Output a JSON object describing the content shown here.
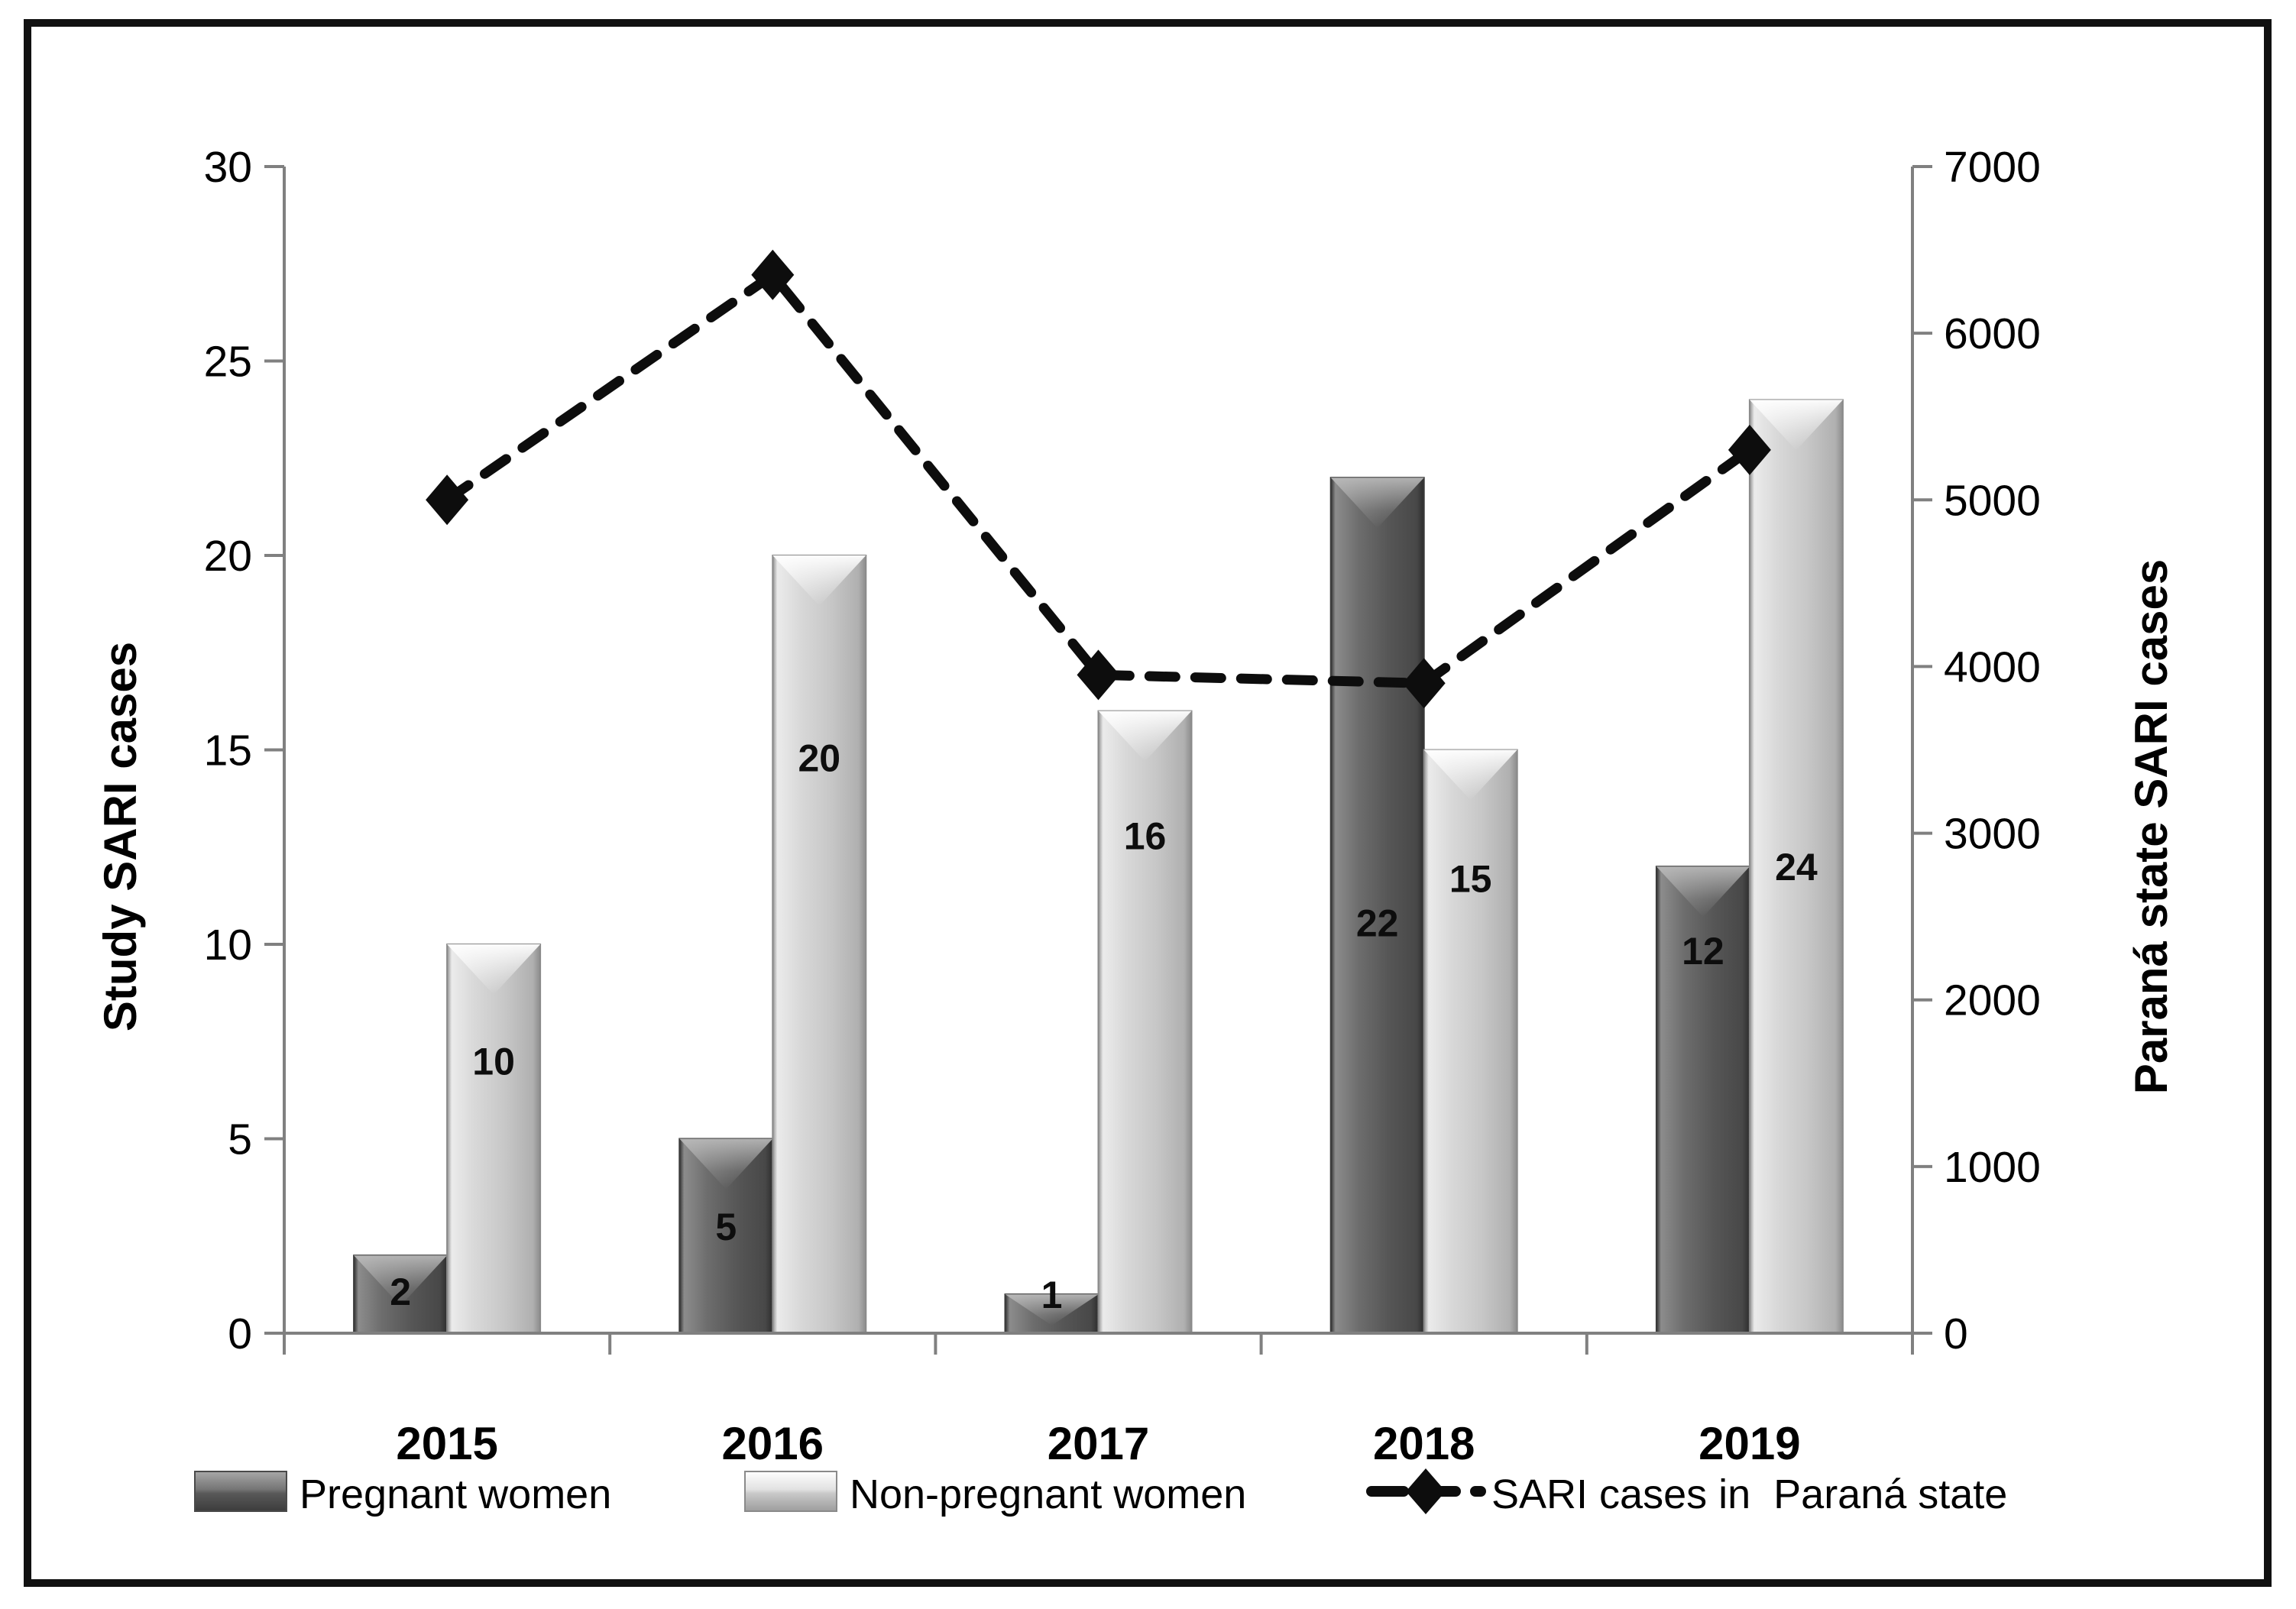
{
  "chart_data": {
    "type": "bar",
    "subtype": "grouped-bars-with-dashed-line-overlay",
    "categories": [
      "2015",
      "2016",
      "2017",
      "2018",
      "2019"
    ],
    "series": [
      {
        "name": "Pregnant women",
        "type": "bar",
        "axis": "left",
        "values": [
          2,
          5,
          1,
          22,
          12
        ]
      },
      {
        "name": "Non-pregnant women",
        "type": "bar",
        "axis": "left",
        "values": [
          10,
          20,
          16,
          15,
          24
        ]
      },
      {
        "name": "SARI cases in Paraná state",
        "type": "line",
        "axis": "right",
        "line_style": "dashed",
        "marker": "diamond",
        "values": [
          5000,
          6350,
          3950,
          3900,
          5300
        ]
      }
    ],
    "left_axis": {
      "title": "Study SARI cases",
      "min": 0,
      "max": 30,
      "step": 5,
      "tick_labels": [
        "0",
        "5",
        "10",
        "15",
        "20",
        "25",
        "30"
      ]
    },
    "right_axis": {
      "title": "Paraná state SARI cases",
      "min": 0,
      "max": 7000,
      "step": 1000,
      "tick_labels": [
        "0",
        "1000",
        "2000",
        "3000",
        "4000",
        "5000",
        "6000",
        "7000"
      ]
    },
    "legend": {
      "position": "bottom",
      "items": [
        {
          "label": "Pregnant women",
          "swatch": "bar-dark"
        },
        {
          "label": "Non-pregnant women",
          "swatch": "bar-light"
        },
        {
          "label": "SARI cases in  Paraná state",
          "swatch": "dashed-line-with-diamond"
        }
      ]
    },
    "colors": {
      "bar_dark": "#585858",
      "bar_light": "#cbcbcb",
      "line": "#0d0d0d",
      "axis": "#808080",
      "text": "#000000",
      "frame": "#111111"
    },
    "layout_hints": {
      "grid": false,
      "plot_background": "#ffffff",
      "outer_border": true,
      "label_fractions_pregnant": [
        0.46,
        0.45,
        0.0,
        0.52,
        0.18
      ],
      "label_fractions_non_pregnant": [
        0.3,
        0.26,
        0.2,
        0.22,
        0.5
      ]
    }
  }
}
